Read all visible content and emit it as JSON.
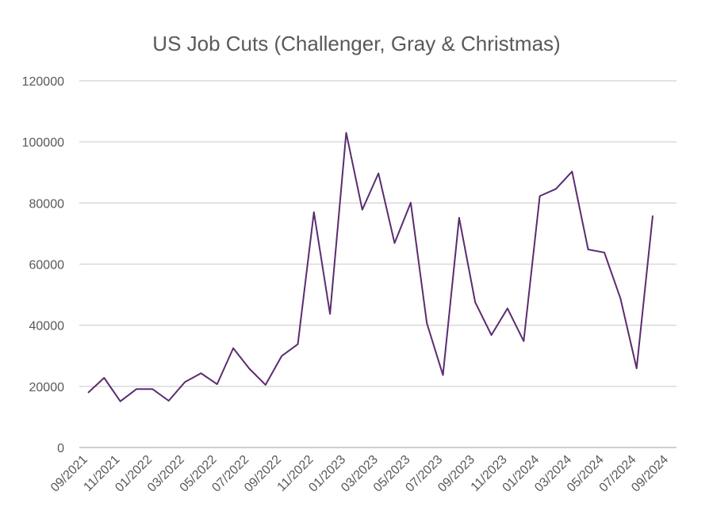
{
  "chart_data": {
    "type": "line",
    "title": "US Job Cuts (Challenger, Gray & Christmas)",
    "xlabel": "",
    "ylabel": "",
    "ylim": [
      0,
      120000
    ],
    "yticks": [
      0,
      20000,
      40000,
      60000,
      80000,
      100000,
      120000
    ],
    "grid": true,
    "legend": "none",
    "line_color": "#5b2c6f",
    "x": [
      "09/2021",
      "10/2021",
      "11/2021",
      "12/2021",
      "01/2022",
      "02/2022",
      "03/2022",
      "04/2022",
      "05/2022",
      "06/2022",
      "07/2022",
      "08/2022",
      "09/2022",
      "10/2022",
      "11/2022",
      "12/2022",
      "01/2023",
      "02/2023",
      "03/2023",
      "04/2023",
      "05/2023",
      "06/2023",
      "07/2023",
      "08/2023",
      "09/2023",
      "10/2023",
      "11/2023",
      "12/2023",
      "01/2024",
      "02/2024",
      "03/2024",
      "04/2024",
      "05/2024",
      "06/2024",
      "07/2024",
      "08/2024"
    ],
    "xtick_labels": [
      "09/2021",
      "11/2021",
      "01/2022",
      "03/2022",
      "05/2022",
      "07/2022",
      "09/2022",
      "11/2022",
      "01/2023",
      "03/2023",
      "05/2023",
      "07/2023",
      "09/2023",
      "11/2023",
      "01/2024",
      "03/2024",
      "05/2024",
      "07/2024",
      "09/2024"
    ],
    "series": [
      {
        "values": [
          17900,
          22800,
          15100,
          19100,
          19100,
          15300,
          21400,
          24300,
          20700,
          32500,
          25800,
          20500,
          29900,
          33800,
          77000,
          43700,
          103000,
          77800,
          89700,
          66900,
          80100,
          40700,
          23700,
          75200,
          47500,
          36800,
          45500,
          34800,
          82300,
          84600,
          90300,
          64800,
          63800,
          48800,
          25900,
          75900
        ]
      }
    ]
  }
}
